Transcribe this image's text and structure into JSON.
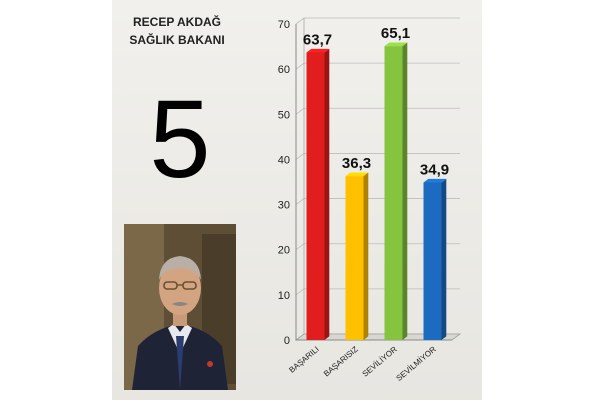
{
  "person": {
    "name": "RECEP AKDAĞ",
    "position": "SAĞLIK BAKANI",
    "rank": "5"
  },
  "chart_data": {
    "type": "bar",
    "title": "",
    "xlabel": "",
    "ylabel": "",
    "ylim": [
      0,
      70
    ],
    "yticks": [
      0,
      10,
      20,
      30,
      40,
      50,
      60,
      70
    ],
    "yticks_labels": [
      "0",
      "10",
      "20",
      "30",
      "40",
      "50",
      "60",
      "70"
    ],
    "grid": true,
    "bar_style": "3d",
    "categories": [
      "BAŞARILI",
      "BAŞARISIZ",
      "SEVİLİYOR",
      "SEVİLMİYOR"
    ],
    "values": [
      63.7,
      36.3,
      65.1,
      34.9
    ],
    "value_labels": [
      "63,7",
      "36,3",
      "65,1",
      "34,9"
    ],
    "colors": [
      "#e21d1d",
      "#ffc000",
      "#86c440",
      "#1d6bc0"
    ]
  }
}
